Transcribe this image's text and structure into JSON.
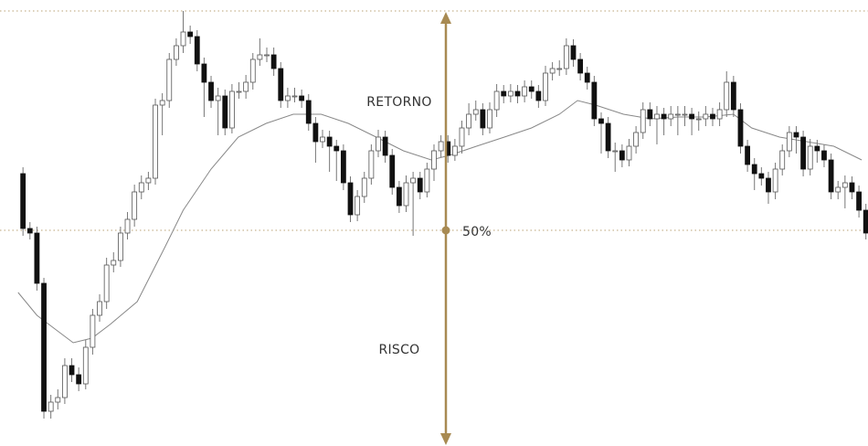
{
  "chart_data": {
    "type": "candlestick",
    "annotations": {
      "upper": "RETORNO",
      "lower": "RISCO"
    },
    "levels": [
      476,
      236
    ],
    "level_label": "50%",
    "xlim": [
      -3.3,
      121.3
    ],
    "ylim": [
      0,
      488
    ],
    "colors": {
      "up": "#ffffff",
      "down": "#111111",
      "wick": "#777777",
      "outline": "#555555",
      "ma": "#888888",
      "accent": "#a88a52"
    },
    "candles": [
      [
        298,
        305,
        230,
        238
      ],
      [
        238,
        245,
        226,
        233
      ],
      [
        233,
        240,
        170,
        178
      ],
      [
        178,
        184,
        30,
        38
      ],
      [
        38,
        56,
        30,
        48
      ],
      [
        48,
        62,
        40,
        53
      ],
      [
        53,
        96,
        46,
        88
      ],
      [
        88,
        96,
        70,
        78
      ],
      [
        78,
        86,
        60,
        68
      ],
      [
        68,
        116,
        62,
        108
      ],
      [
        108,
        150,
        100,
        143
      ],
      [
        143,
        166,
        136,
        158
      ],
      [
        158,
        206,
        150,
        198
      ],
      [
        198,
        212,
        190,
        203
      ],
      [
        203,
        240,
        196,
        233
      ],
      [
        233,
        256,
        226,
        248
      ],
      [
        248,
        286,
        240,
        278
      ],
      [
        278,
        296,
        270,
        288
      ],
      [
        288,
        300,
        280,
        293
      ],
      [
        293,
        380,
        286,
        373
      ],
      [
        373,
        386,
        340,
        378
      ],
      [
        378,
        430,
        370,
        423
      ],
      [
        423,
        446,
        416,
        438
      ],
      [
        438,
        476,
        430,
        453
      ],
      [
        453,
        460,
        440,
        448
      ],
      [
        448,
        455,
        410,
        418
      ],
      [
        418,
        425,
        360,
        398
      ],
      [
        398,
        405,
        370,
        378
      ],
      [
        378,
        392,
        340,
        383
      ],
      [
        383,
        390,
        340,
        348
      ],
      [
        348,
        396,
        342,
        388
      ],
      [
        388,
        398,
        380,
        388
      ],
      [
        388,
        406,
        380,
        398
      ],
      [
        398,
        430,
        390,
        423
      ],
      [
        423,
        446,
        416,
        428
      ],
      [
        428,
        436,
        420,
        428
      ],
      [
        428,
        436,
        405,
        413
      ],
      [
        413,
        420,
        370,
        378
      ],
      [
        378,
        392,
        370,
        383
      ],
      [
        383,
        392,
        376,
        383
      ],
      [
        383,
        390,
        370,
        378
      ],
      [
        378,
        385,
        345,
        353
      ],
      [
        353,
        360,
        310,
        333
      ],
      [
        333,
        346,
        326,
        338
      ],
      [
        338,
        345,
        300,
        328
      ],
      [
        328,
        335,
        290,
        323
      ],
      [
        323,
        330,
        280,
        288
      ],
      [
        288,
        295,
        245,
        253
      ],
      [
        253,
        280,
        246,
        273
      ],
      [
        273,
        300,
        266,
        293
      ],
      [
        293,
        330,
        286,
        323
      ],
      [
        323,
        346,
        316,
        338
      ],
      [
        338,
        345,
        310,
        318
      ],
      [
        318,
        325,
        275,
        283
      ],
      [
        283,
        290,
        255,
        263
      ],
      [
        263,
        296,
        256,
        288
      ],
      [
        288,
        300,
        230,
        293
      ],
      [
        293,
        300,
        270,
        278
      ],
      [
        278,
        310,
        272,
        303
      ],
      [
        303,
        330,
        290,
        323
      ],
      [
        323,
        340,
        316,
        333
      ],
      [
        333,
        340,
        310,
        318
      ],
      [
        318,
        336,
        312,
        328
      ],
      [
        328,
        356,
        320,
        348
      ],
      [
        348,
        375,
        340,
        363
      ],
      [
        363,
        378,
        356,
        368
      ],
      [
        368,
        375,
        340,
        348
      ],
      [
        348,
        376,
        342,
        368
      ],
      [
        368,
        396,
        360,
        388
      ],
      [
        388,
        395,
        375,
        383
      ],
      [
        383,
        396,
        376,
        388
      ],
      [
        388,
        395,
        375,
        383
      ],
      [
        383,
        400,
        376,
        393
      ],
      [
        393,
        400,
        380,
        388
      ],
      [
        388,
        395,
        370,
        378
      ],
      [
        378,
        416,
        372,
        408
      ],
      [
        408,
        420,
        400,
        413
      ],
      [
        413,
        422,
        405,
        413
      ],
      [
        413,
        446,
        406,
        438
      ],
      [
        438,
        445,
        415,
        423
      ],
      [
        423,
        430,
        400,
        408
      ],
      [
        408,
        415,
        390,
        398
      ],
      [
        398,
        405,
        350,
        358
      ],
      [
        358,
        365,
        320,
        353
      ],
      [
        353,
        360,
        315,
        323
      ],
      [
        323,
        332,
        300,
        323
      ],
      [
        323,
        330,
        305,
        313
      ],
      [
        313,
        336,
        306,
        328
      ],
      [
        328,
        350,
        320,
        343
      ],
      [
        343,
        376,
        336,
        368
      ],
      [
        368,
        376,
        350,
        358
      ],
      [
        358,
        372,
        330,
        363
      ],
      [
        363,
        370,
        340,
        358
      ],
      [
        358,
        372,
        350,
        363
      ],
      [
        363,
        372,
        340,
        363
      ],
      [
        363,
        372,
        350,
        363
      ],
      [
        363,
        370,
        340,
        358
      ],
      [
        358,
        366,
        345,
        358
      ],
      [
        358,
        372,
        350,
        363
      ],
      [
        363,
        370,
        350,
        358
      ],
      [
        358,
        376,
        350,
        368
      ],
      [
        368,
        410,
        360,
        398
      ],
      [
        398,
        405,
        360,
        368
      ],
      [
        368,
        375,
        320,
        328
      ],
      [
        328,
        335,
        300,
        308
      ],
      [
        308,
        315,
        280,
        298
      ],
      [
        298,
        305,
        285,
        293
      ],
      [
        293,
        300,
        265,
        278
      ],
      [
        278,
        310,
        270,
        303
      ],
      [
        303,
        330,
        296,
        323
      ],
      [
        323,
        350,
        316,
        343
      ],
      [
        343,
        350,
        320,
        338
      ],
      [
        338,
        345,
        295,
        303
      ],
      [
        303,
        336,
        296,
        328
      ],
      [
        328,
        335,
        310,
        323
      ],
      [
        323,
        330,
        305,
        313
      ],
      [
        313,
        320,
        270,
        278
      ],
      [
        278,
        290,
        270,
        283
      ],
      [
        283,
        296,
        260,
        288
      ],
      [
        288,
        295,
        270,
        278
      ],
      [
        278,
        285,
        250,
        258
      ],
      [
        258,
        265,
        226,
        233
      ]
    ],
    "ma": {
      "x": [
        -0.7,
        2,
        4.6,
        7.2,
        9.9,
        12.5,
        16.4,
        20.4,
        23,
        27,
        30.9,
        34.9,
        38.8,
        42.8,
        46.7,
        50.7,
        54.6,
        58.6,
        61.2,
        65.1,
        69.1,
        73,
        77,
        79.6,
        82.2,
        86.2,
        90.1,
        94.1,
        98,
        102,
        104.6,
        108.6,
        112.5,
        116.4,
        120.4
      ],
      "y": [
        168,
        143,
        128,
        113,
        118,
        133,
        158,
        218,
        258,
        303,
        338,
        353,
        363,
        363,
        353,
        338,
        323,
        313,
        318,
        328,
        338,
        348,
        363,
        378,
        373,
        363,
        358,
        360,
        360,
        363,
        348,
        338,
        333,
        328,
        313
      ]
    }
  }
}
